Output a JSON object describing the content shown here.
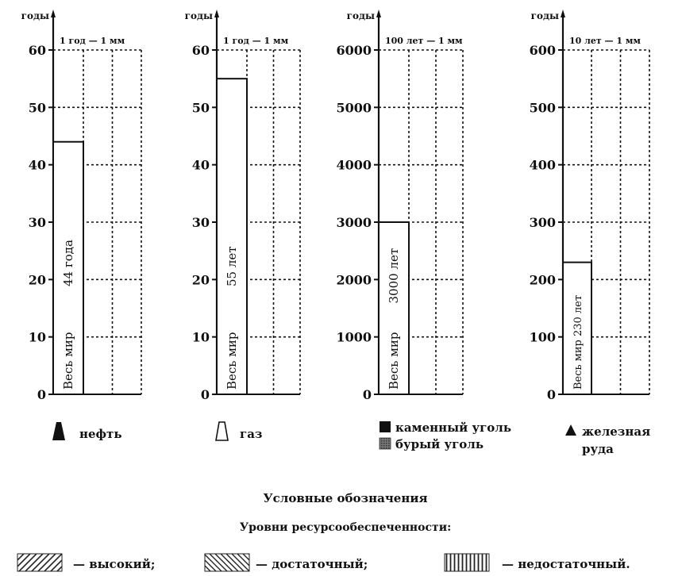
{
  "chart_data": [
    {
      "type": "bar",
      "ylabel": "годы",
      "scale_note": "1 год — 1 мм",
      "ylim": [
        0,
        60
      ],
      "yticks": [
        "0",
        "10",
        "20",
        "30",
        "40",
        "50",
        "60"
      ],
      "categories": [
        "Весь мир"
      ],
      "values": [
        44
      ],
      "data_labels": [
        "44 года"
      ],
      "bar_title": "Весь мир",
      "legend_icon": "oil-derrick-icon",
      "legend_label": "нефть"
    },
    {
      "type": "bar",
      "ylabel": "годы",
      "scale_note": "1 год — 1 мм",
      "ylim": [
        0,
        60
      ],
      "yticks": [
        "0",
        "10",
        "20",
        "30",
        "40",
        "50",
        "60"
      ],
      "categories": [
        "Весь мир"
      ],
      "values": [
        55
      ],
      "data_labels": [
        "55 лет"
      ],
      "bar_title": "Весь мир",
      "legend_icon": "gas-icon",
      "legend_label": "газ"
    },
    {
      "type": "bar",
      "ylabel": "годы",
      "scale_note": "100 лет — 1 мм",
      "ylim": [
        0,
        6000
      ],
      "yticks": [
        "0",
        "1000",
        "2000",
        "3000",
        "4000",
        "5000",
        "6000"
      ],
      "categories": [
        "Весь мир"
      ],
      "values": [
        3000
      ],
      "data_labels": [
        "3000 лет"
      ],
      "bar_title": "Весь мир",
      "legend_items": [
        {
          "icon": "black-square-icon",
          "label": "каменный уголь"
        },
        {
          "icon": "hatched-square-icon",
          "label": "бурый уголь"
        }
      ]
    },
    {
      "type": "bar",
      "ylabel": "годы",
      "scale_note": "10 лет — 1 мм",
      "ylim": [
        0,
        600
      ],
      "yticks": [
        "0",
        "100",
        "200",
        "300",
        "400",
        "500",
        "600"
      ],
      "categories": [
        "Весь мир"
      ],
      "values": [
        230
      ],
      "data_labels": [
        "230 лет"
      ],
      "bar_title": "Весь мир",
      "legend_icon": "triangle-icon",
      "legend_label_lines": [
        "железная",
        "руда"
      ]
    }
  ],
  "bottom_legend": {
    "title": "Условные обозначения",
    "subtitle": "Уровни ресурсообеспеченности:",
    "levels": [
      {
        "pattern": "diagonal-right",
        "label": "— высокий;"
      },
      {
        "pattern": "diagonal-left",
        "label": "— достаточный;"
      },
      {
        "pattern": "vertical",
        "label": "— недостаточный."
      }
    ]
  }
}
